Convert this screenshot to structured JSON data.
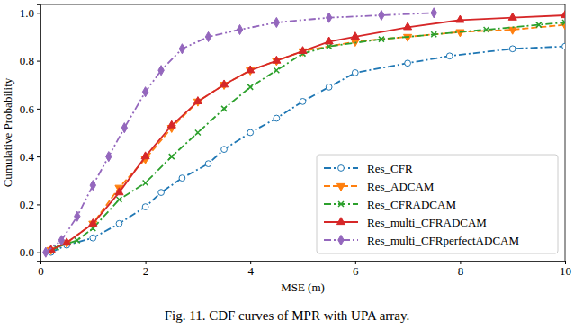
{
  "chart_data": {
    "type": "line",
    "caption": "Fig. 11. CDF curves of MPR with UPA array.",
    "x_label": "MSE (m)",
    "y_label": "Cumulative Probability",
    "xlim": [
      0,
      10
    ],
    "ylim": [
      -0.035,
      1.035
    ],
    "xticks": [
      0,
      2,
      4,
      6,
      8,
      10
    ],
    "yticks": [
      {
        "value": 0,
        "label": "0.0"
      },
      {
        "value": 0.2,
        "label": "0.2"
      },
      {
        "value": 0.4,
        "label": "0.4"
      },
      {
        "value": 0.6,
        "label": "0.6"
      },
      {
        "value": 0.8,
        "label": "0.8"
      },
      {
        "value": 1,
        "label": "1.0"
      }
    ],
    "grid": false,
    "legend": "lower right",
    "series": [
      {
        "name": "Res_CFR",
        "color": "#1f77b4",
        "marker": "circle",
        "line_style": "dashdot",
        "x": [
          0.2,
          0.5,
          1.0,
          1.5,
          2.0,
          2.3,
          2.7,
          3.2,
          3.5,
          4.0,
          4.5,
          5.0,
          5.5,
          6.0,
          7.0,
          7.8,
          9.0,
          10.0
        ],
        "values": [
          0.0,
          0.03,
          0.06,
          0.12,
          0.19,
          0.25,
          0.31,
          0.37,
          0.43,
          0.5,
          0.56,
          0.63,
          0.69,
          0.75,
          0.79,
          0.82,
          0.85,
          0.86
        ]
      },
      {
        "name": "Res_ADCAM",
        "color": "#ff7f0e",
        "marker": "triangle_down",
        "line_style": "dashed",
        "x": [
          0.2,
          0.5,
          1.0,
          1.5,
          2.0,
          2.5,
          3.0,
          3.5,
          4.0,
          4.5,
          5.0,
          6.0,
          7.0,
          8.0,
          9.0,
          10.0
        ],
        "values": [
          0.01,
          0.04,
          0.12,
          0.27,
          0.39,
          0.52,
          0.63,
          0.7,
          0.76,
          0.8,
          0.84,
          0.88,
          0.9,
          0.92,
          0.93,
          0.95
        ]
      },
      {
        "name": "Res_CFRADCAM",
        "color": "#2ca02c",
        "marker": "x",
        "line_style": "dashdot",
        "x": [
          0.3,
          0.7,
          1.0,
          1.5,
          2.0,
          2.5,
          3.0,
          3.5,
          4.0,
          4.5,
          5.0,
          5.5,
          6.5,
          7.5,
          8.5,
          9.5,
          10.0
        ],
        "values": [
          0.02,
          0.05,
          0.1,
          0.22,
          0.29,
          0.4,
          0.5,
          0.6,
          0.69,
          0.76,
          0.83,
          0.86,
          0.89,
          0.91,
          0.93,
          0.95,
          0.96
        ]
      },
      {
        "name": "Res_multi_CFRADCAM",
        "color": "#d62728",
        "marker": "triangle_up",
        "line_style": "solid",
        "x": [
          0.2,
          0.5,
          1.0,
          1.5,
          2.0,
          2.5,
          3.0,
          3.5,
          4.0,
          4.5,
          5.0,
          5.5,
          6.0,
          7.0,
          8.0,
          9.0,
          10.0
        ],
        "values": [
          0.01,
          0.04,
          0.12,
          0.25,
          0.4,
          0.53,
          0.63,
          0.7,
          0.76,
          0.8,
          0.84,
          0.88,
          0.9,
          0.94,
          0.97,
          0.98,
          0.99
        ]
      },
      {
        "name": "Res_multi_CFRperfectADCAM",
        "color": "#9467bd",
        "marker": "diamond",
        "line_style": "dashdotdot",
        "x": [
          0.1,
          0.4,
          0.7,
          1.0,
          1.3,
          1.6,
          2.0,
          2.3,
          2.7,
          3.2,
          3.8,
          4.5,
          5.5,
          6.5,
          7.5
        ],
        "values": [
          0.0,
          0.05,
          0.15,
          0.28,
          0.4,
          0.52,
          0.67,
          0.76,
          0.85,
          0.9,
          0.93,
          0.96,
          0.98,
          0.99,
          1.0
        ]
      }
    ]
  }
}
